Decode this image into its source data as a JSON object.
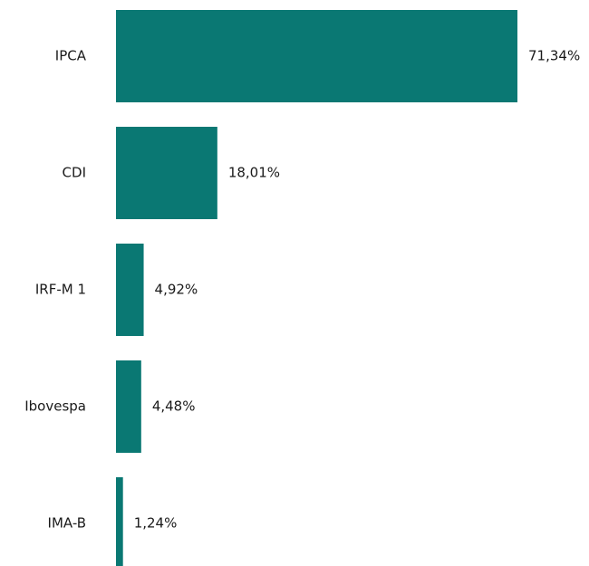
{
  "chart_data": {
    "type": "bar",
    "orientation": "horizontal",
    "categories": [
      "IPCA",
      "CDI",
      "IRF-M 1",
      "Ibovespa",
      "IMA-B"
    ],
    "values": [
      71.34,
      18.01,
      4.92,
      4.48,
      1.24
    ],
    "value_labels": [
      "71,34%",
      "18,01%",
      "4,92%",
      "4,48%",
      "1,24%"
    ],
    "color": "#0a7873"
  }
}
